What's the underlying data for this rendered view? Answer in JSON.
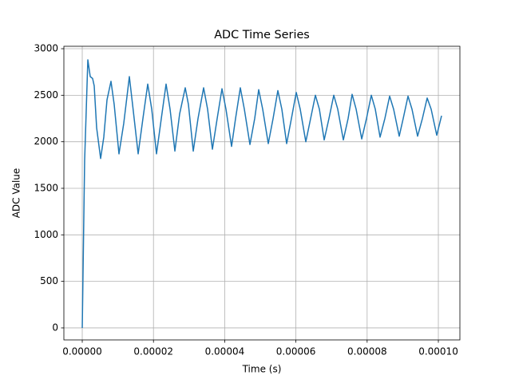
{
  "chart_data": {
    "type": "line",
    "title": "ADC Time Series",
    "x_label": "Time (s)",
    "y_label": "ADC Value",
    "x": [
      0,
      6.7e-07,
      1.57e-06,
      2.24e-06,
      2.91e-06,
      3.36e-06,
      4.04e-06,
      5.16e-06,
      6.05e-06,
      6.95e-06,
      8.07e-06,
      8.97e-06,
      1.031e-05,
      1.166e-05,
      1.323e-05,
      1.413e-05,
      1.57e-05,
      1.704e-05,
      1.839e-05,
      1.951e-05,
      2.085e-05,
      2.22e-05,
      2.354e-05,
      2.466e-05,
      2.601e-05,
      2.735e-05,
      2.892e-05,
      2.982e-05,
      3.117e-05,
      3.251e-05,
      3.408e-05,
      3.52e-05,
      3.655e-05,
      3.789e-05,
      3.924e-05,
      4.036e-05,
      4.193e-05,
      4.305e-05,
      4.439e-05,
      4.552e-05,
      4.709e-05,
      4.843e-05,
      4.955e-05,
      5.067e-05,
      5.224e-05,
      5.359e-05,
      5.493e-05,
      5.605e-05,
      5.74e-05,
      5.874e-05,
      6.009e-05,
      6.121e-05,
      6.278e-05,
      6.413e-05,
      6.547e-05,
      6.659e-05,
      6.794e-05,
      6.928e-05,
      7.063e-05,
      7.175e-05,
      7.332e-05,
      7.466e-05,
      7.578e-05,
      7.691e-05,
      7.848e-05,
      7.982e-05,
      8.117e-05,
      8.229e-05,
      8.363e-05,
      8.498e-05,
      8.632e-05,
      8.744e-05,
      8.901e-05,
      9.013e-05,
      9.148e-05,
      9.26e-05,
      9.417e-05,
      9.552e-05,
      9.686e-05,
      9.798e-05,
      9.955e-05,
      0.0001009
    ],
    "series": [
      {
        "name": "ADC",
        "color": "#1f77b4",
        "values": [
          0,
          1800,
          2880,
          2700,
          2680,
          2600,
          2150,
          1820,
          2050,
          2450,
          2650,
          2400,
          1870,
          2200,
          2700,
          2400,
          1870,
          2250,
          2620,
          2350,
          1870,
          2250,
          2620,
          2350,
          1900,
          2300,
          2580,
          2400,
          1900,
          2250,
          2580,
          2350,
          1920,
          2250,
          2570,
          2350,
          1950,
          2250,
          2580,
          2350,
          1970,
          2250,
          2560,
          2350,
          1980,
          2250,
          2550,
          2350,
          1980,
          2250,
          2530,
          2350,
          2000,
          2250,
          2500,
          2350,
          2020,
          2250,
          2500,
          2350,
          2020,
          2250,
          2510,
          2350,
          2030,
          2250,
          2500,
          2350,
          2050,
          2250,
          2490,
          2350,
          2060,
          2250,
          2490,
          2350,
          2060,
          2250,
          2470,
          2350,
          2070,
          2280
        ]
      }
    ],
    "xlim": [
      -5.16e-06,
      0.00010605
    ],
    "ylim": [
      -129,
      3026
    ],
    "xticks": [
      {
        "value": 0,
        "label": "0.00000"
      },
      {
        "value": 2e-05,
        "label": "0.00002"
      },
      {
        "value": 4e-05,
        "label": "0.00004"
      },
      {
        "value": 6e-05,
        "label": "0.00006"
      },
      {
        "value": 8e-05,
        "label": "0.00008"
      },
      {
        "value": 0.0001,
        "label": "0.00010"
      }
    ],
    "yticks": [
      0,
      500,
      1000,
      1500,
      2000,
      2500,
      3000
    ],
    "grid": true
  }
}
